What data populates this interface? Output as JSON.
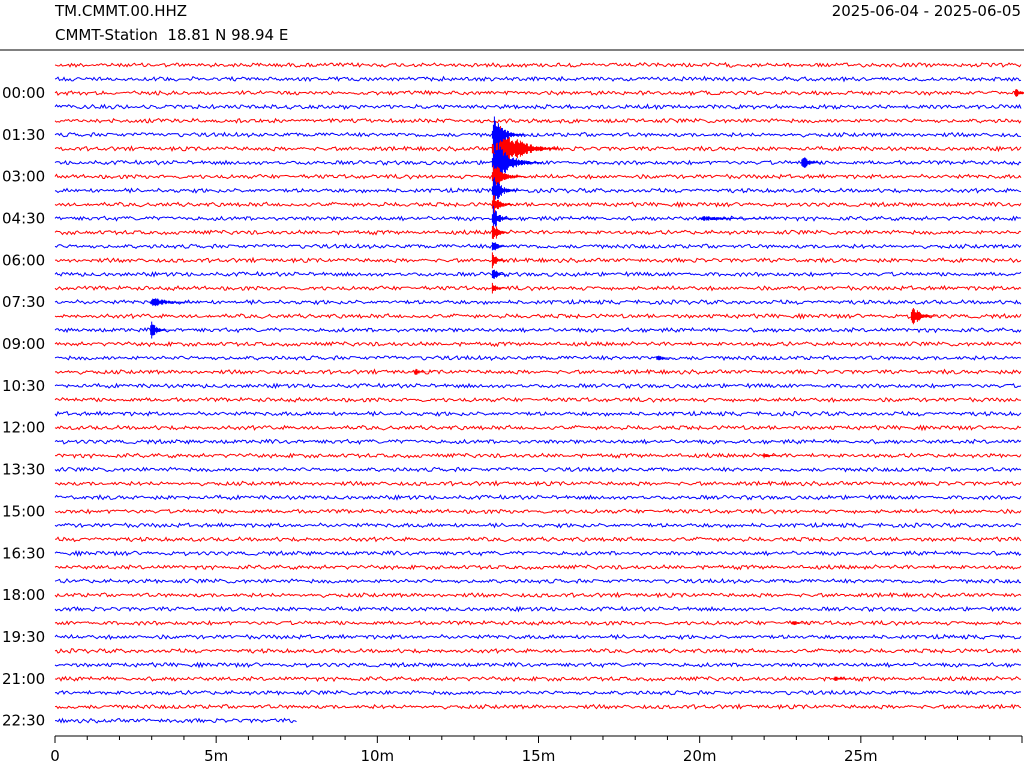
{
  "header": {
    "station_code": "TM.CMMT.00.HHZ",
    "station_info": "CMMT-Station  18.81 N 98.94 E",
    "date_range": "2025-06-04 - 2025-06-05"
  },
  "chart_data": {
    "type": "line",
    "title": "",
    "xlabel": "",
    "ylabel": "",
    "x_unit": "minutes",
    "xlim": [
      0,
      30
    ],
    "x_ticks": [
      {
        "value": 0,
        "label": "0"
      },
      {
        "value": 5,
        "label": "5m"
      },
      {
        "value": 10,
        "label": "10m"
      },
      {
        "value": 15,
        "label": "15m"
      },
      {
        "value": 20,
        "label": "20m"
      },
      {
        "value": 25,
        "label": "25m"
      }
    ],
    "row_duration_minutes": 30,
    "row_count": 48,
    "last_row_minutes_recorded": 7.5,
    "row_labels": [
      "00:00",
      "01:30",
      "03:00",
      "04:30",
      "06:00",
      "07:30",
      "09:00",
      "10:30",
      "12:00",
      "13:30",
      "15:00",
      "16:30",
      "18:00",
      "19:30",
      "21:00",
      "22:30"
    ],
    "row_colors": [
      "#ff0000",
      "#0000ff"
    ],
    "events": [
      {
        "row": 6,
        "minute": 13.6,
        "amplitude": 1.0,
        "duration": 2.0
      },
      {
        "row": 7,
        "minute": 13.6,
        "amplitude": 0.7,
        "duration": 1.5
      },
      {
        "row": 5,
        "minute": 13.6,
        "amplitude": 0.6,
        "duration": 1.0
      },
      {
        "row": 8,
        "minute": 13.6,
        "amplitude": 0.5,
        "duration": 1.0
      },
      {
        "row": 9,
        "minute": 13.6,
        "amplitude": 0.5,
        "duration": 0.8
      },
      {
        "row": 10,
        "minute": 13.6,
        "amplitude": 0.4,
        "duration": 0.6
      },
      {
        "row": 11,
        "minute": 13.6,
        "amplitude": 0.4,
        "duration": 0.6
      },
      {
        "row": 12,
        "minute": 13.6,
        "amplitude": 0.4,
        "duration": 0.5
      },
      {
        "row": 13,
        "minute": 13.6,
        "amplitude": 0.3,
        "duration": 0.4
      },
      {
        "row": 14,
        "minute": 13.6,
        "amplitude": 0.3,
        "duration": 0.4
      },
      {
        "row": 15,
        "minute": 13.6,
        "amplitude": 0.3,
        "duration": 0.4
      },
      {
        "row": 16,
        "minute": 13.6,
        "amplitude": 0.2,
        "duration": 0.4
      },
      {
        "row": 7,
        "minute": 23.2,
        "amplitude": 0.3,
        "duration": 0.6
      },
      {
        "row": 11,
        "minute": 20.0,
        "amplitude": 0.08,
        "duration": 2.5
      },
      {
        "row": 17,
        "minute": 3.0,
        "amplitude": 0.15,
        "duration": 1.5
      },
      {
        "row": 18,
        "minute": 26.6,
        "amplitude": 0.35,
        "duration": 0.8
      },
      {
        "row": 19,
        "minute": 3.0,
        "amplitude": 0.3,
        "duration": 0.6
      },
      {
        "row": 21,
        "minute": 18.7,
        "amplitude": 0.12,
        "duration": 0.5
      },
      {
        "row": 22,
        "minute": 11.2,
        "amplitude": 0.1,
        "duration": 0.6
      },
      {
        "row": 28,
        "minute": 22.0,
        "amplitude": 0.1,
        "duration": 0.6
      },
      {
        "row": 40,
        "minute": 22.9,
        "amplitude": 0.1,
        "duration": 0.6
      },
      {
        "row": 44,
        "minute": 24.2,
        "amplitude": 0.08,
        "duration": 0.8
      },
      {
        "row": 2,
        "minute": 29.8,
        "amplitude": 0.15,
        "duration": 0.8
      }
    ]
  }
}
